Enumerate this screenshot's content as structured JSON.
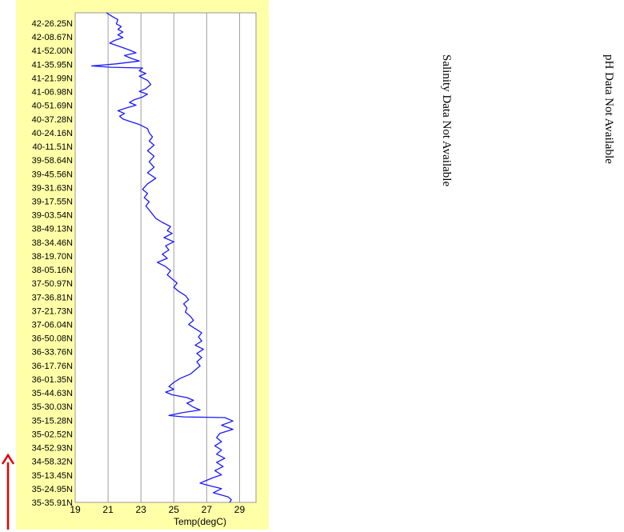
{
  "chart_data": {
    "type": "line",
    "xlabel": "Temp(degC)",
    "x_ticks": [
      19,
      21,
      23,
      25,
      27,
      29
    ],
    "xlim": [
      19,
      30
    ],
    "y_tick_labels": [
      "42-26.25N",
      "42-08.67N",
      "41-52.00N",
      "41-35.95N",
      "41-21.99N",
      "41-06.98N",
      "40-51.69N",
      "40-37.28N",
      "40-24.16N",
      "40-11.51N",
      "39-58.64N",
      "39-45.56N",
      "39-31.63N",
      "39-17.55N",
      "39-03.54N",
      "38-49.13N",
      "38-34.46N",
      "38-19.70N",
      "38-05.16N",
      "37-50.97N",
      "37-36.81N",
      "37-21.73N",
      "37-06.04N",
      "36-50.08N",
      "36-33.76N",
      "36-17.76N",
      "36-01.35N",
      "35-44.63N",
      "35-30.03N",
      "35-15.28N",
      "35-02.52N",
      "34-52.93N",
      "34-58.32N",
      "35-13.45N",
      "35-24.95N",
      "35-35.91N"
    ],
    "grid": "vertical",
    "series": [
      {
        "color": "#1a1aff",
        "points": [
          [
            20.9,
            0
          ],
          [
            21.3,
            0.3
          ],
          [
            21.6,
            0.5
          ],
          [
            21.5,
            0.8
          ],
          [
            21.8,
            1
          ],
          [
            21.6,
            1.2
          ],
          [
            21.9,
            1.4
          ],
          [
            21.6,
            1.6
          ],
          [
            21.9,
            1.8
          ],
          [
            21.4,
            2
          ],
          [
            21.1,
            2.2
          ],
          [
            21.6,
            2.4
          ],
          [
            22.3,
            2.7
          ],
          [
            22.7,
            2.9
          ],
          [
            22.0,
            3.1
          ],
          [
            22.4,
            3.3
          ],
          [
            22.9,
            3.5
          ],
          [
            21.5,
            3.7
          ],
          [
            20.0,
            3.85
          ],
          [
            21.2,
            3.95
          ],
          [
            23.1,
            4.0
          ],
          [
            22.9,
            4.2
          ],
          [
            23.3,
            4.4
          ],
          [
            22.9,
            4.6
          ],
          [
            23.4,
            4.9
          ],
          [
            23.6,
            5.2
          ],
          [
            23.3,
            5.5
          ],
          [
            22.9,
            5.7
          ],
          [
            23.4,
            5.9
          ],
          [
            23.1,
            6.1
          ],
          [
            22.6,
            6.3
          ],
          [
            22.3,
            6.5
          ],
          [
            22.7,
            6.7
          ],
          [
            22.1,
            6.9
          ],
          [
            21.6,
            7.1
          ],
          [
            22.0,
            7.3
          ],
          [
            21.7,
            7.5
          ],
          [
            21.9,
            7.7
          ],
          [
            22.4,
            7.9
          ],
          [
            22.9,
            8.1
          ],
          [
            23.4,
            8.4
          ],
          [
            23.5,
            8.7
          ],
          [
            23.7,
            9.0
          ],
          [
            23.5,
            9.3
          ],
          [
            23.8,
            9.6
          ],
          [
            23.4,
            10.0
          ],
          [
            23.8,
            10.4
          ],
          [
            23.5,
            10.8
          ],
          [
            23.8,
            11.2
          ],
          [
            23.4,
            11.6
          ],
          [
            23.9,
            12.0
          ],
          [
            23.4,
            12.4
          ],
          [
            23.1,
            12.8
          ],
          [
            23.4,
            13.1
          ],
          [
            23.2,
            13.4
          ],
          [
            23.5,
            13.7
          ],
          [
            23.3,
            14.0
          ],
          [
            23.5,
            14.3
          ],
          [
            23.7,
            14.6
          ],
          [
            23.9,
            14.9
          ],
          [
            24.3,
            15.2
          ],
          [
            24.8,
            15.5
          ],
          [
            24.6,
            15.8
          ],
          [
            24.9,
            16.0
          ],
          [
            24.4,
            16.3
          ],
          [
            25.0,
            16.6
          ],
          [
            24.5,
            16.9
          ],
          [
            24.7,
            17.2
          ],
          [
            24.3,
            17.5
          ],
          [
            24.6,
            17.8
          ],
          [
            24.0,
            18.1
          ],
          [
            24.5,
            18.4
          ],
          [
            24.8,
            18.7
          ],
          [
            24.6,
            19.0
          ],
          [
            24.9,
            19.3
          ],
          [
            25.2,
            19.6
          ],
          [
            25.0,
            19.9
          ],
          [
            25.3,
            20.2
          ],
          [
            25.7,
            20.5
          ],
          [
            25.9,
            20.8
          ],
          [
            25.6,
            21.1
          ],
          [
            25.8,
            21.4
          ],
          [
            25.7,
            21.7
          ],
          [
            26.0,
            22.0
          ],
          [
            26.2,
            22.3
          ],
          [
            25.9,
            22.6
          ],
          [
            26.3,
            22.9
          ],
          [
            26.7,
            23.2
          ],
          [
            26.5,
            23.5
          ],
          [
            26.7,
            23.8
          ],
          [
            26.3,
            24.1
          ],
          [
            26.8,
            24.4
          ],
          [
            26.4,
            24.7
          ],
          [
            26.7,
            25.0
          ],
          [
            26.4,
            25.3
          ],
          [
            26.6,
            25.6
          ],
          [
            26.3,
            25.9
          ],
          [
            26.0,
            26.2
          ],
          [
            25.4,
            26.5
          ],
          [
            25.0,
            26.8
          ],
          [
            24.7,
            27.1
          ],
          [
            25.0,
            27.3
          ],
          [
            24.5,
            27.5
          ],
          [
            24.9,
            27.7
          ],
          [
            25.8,
            27.9
          ],
          [
            26.2,
            28.1
          ],
          [
            25.8,
            28.3
          ],
          [
            26.2,
            28.6
          ],
          [
            26.6,
            28.8
          ],
          [
            25.5,
            29.0
          ],
          [
            24.7,
            29.2
          ],
          [
            25.6,
            29.3
          ],
          [
            28.1,
            29.35
          ],
          [
            28.6,
            29.6
          ],
          [
            27.9,
            29.9
          ],
          [
            28.6,
            30.2
          ],
          [
            27.8,
            30.5
          ],
          [
            27.6,
            30.8
          ],
          [
            27.9,
            31.1
          ],
          [
            27.5,
            31.4
          ],
          [
            27.9,
            31.7
          ],
          [
            27.6,
            32.0
          ],
          [
            28.1,
            32.3
          ],
          [
            27.6,
            32.6
          ],
          [
            28.0,
            32.9
          ],
          [
            27.5,
            33.2
          ],
          [
            27.9,
            33.5
          ],
          [
            27.4,
            33.7
          ],
          [
            27.0,
            33.9
          ],
          [
            26.6,
            34.1
          ],
          [
            27.2,
            34.3
          ],
          [
            27.9,
            34.5
          ],
          [
            27.4,
            34.8
          ],
          [
            28.3,
            35.1
          ],
          [
            28.5,
            35.3
          ],
          [
            28.4,
            35.5
          ]
        ]
      }
    ]
  },
  "messages": {
    "salinity": "Salinity Data Not Available",
    "ph": "pH Data Not Available"
  },
  "arrow_color": "#e60000"
}
